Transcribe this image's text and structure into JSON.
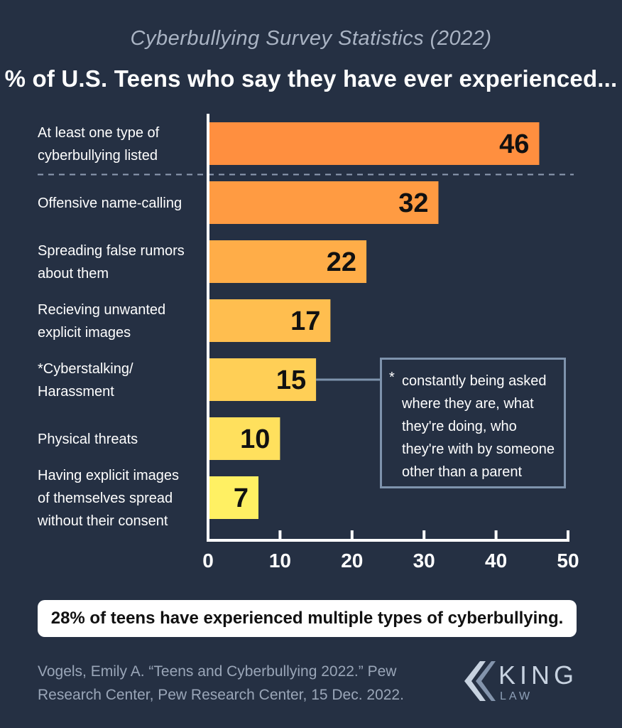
{
  "header": {
    "subtitle": "Cyberbullying Survey Statistics (2022)",
    "title": "% of U.S. Teens who say they have ever experienced..."
  },
  "chart_data": {
    "type": "bar",
    "orientation": "horizontal",
    "categories": [
      [
        "At least one type of",
        "cyberbullying listed"
      ],
      [
        "Offensive name-calling"
      ],
      [
        "Spreading false rumors",
        "about them"
      ],
      [
        "Recieving unwanted",
        "explicit images"
      ],
      [
        "*Cyberstalking/",
        "Harassment"
      ],
      [
        "Physical threats"
      ],
      [
        "Having explicit images",
        "of themselves spread",
        "without their consent"
      ]
    ],
    "values": [
      46,
      32,
      22,
      17,
      15,
      10,
      7
    ],
    "xlim": [
      0,
      50
    ],
    "xticks": [
      "0",
      "10",
      "20",
      "30",
      "40",
      "50"
    ],
    "bar_colors": [
      "#ff8f3f",
      "#ff9b42",
      "#ffad48",
      "#ffbe4f",
      "#ffcf56",
      "#ffe05d",
      "#fff063"
    ],
    "grid": false,
    "separator_after_first": true
  },
  "note": {
    "star": "*",
    "lines": [
      "constantly being asked",
      "where they are, what",
      "they're doing, who",
      "they're with by someone",
      "other than a parent"
    ]
  },
  "callout": "28% of teens have experienced multiple types of cyberbullying.",
  "citation": {
    "line1": "Vogels, Emily A. “Teens and Cyberbullying 2022.” Pew",
    "line2": "Research Center, Pew Research Center, 15 Dec. 2022."
  },
  "logo": {
    "word": "KING",
    "sub": "LAW"
  },
  "colors": {
    "background": "#253043",
    "axis": "#ffffff",
    "note_border": "#7e93ad",
    "separator": "#8e9db3"
  }
}
